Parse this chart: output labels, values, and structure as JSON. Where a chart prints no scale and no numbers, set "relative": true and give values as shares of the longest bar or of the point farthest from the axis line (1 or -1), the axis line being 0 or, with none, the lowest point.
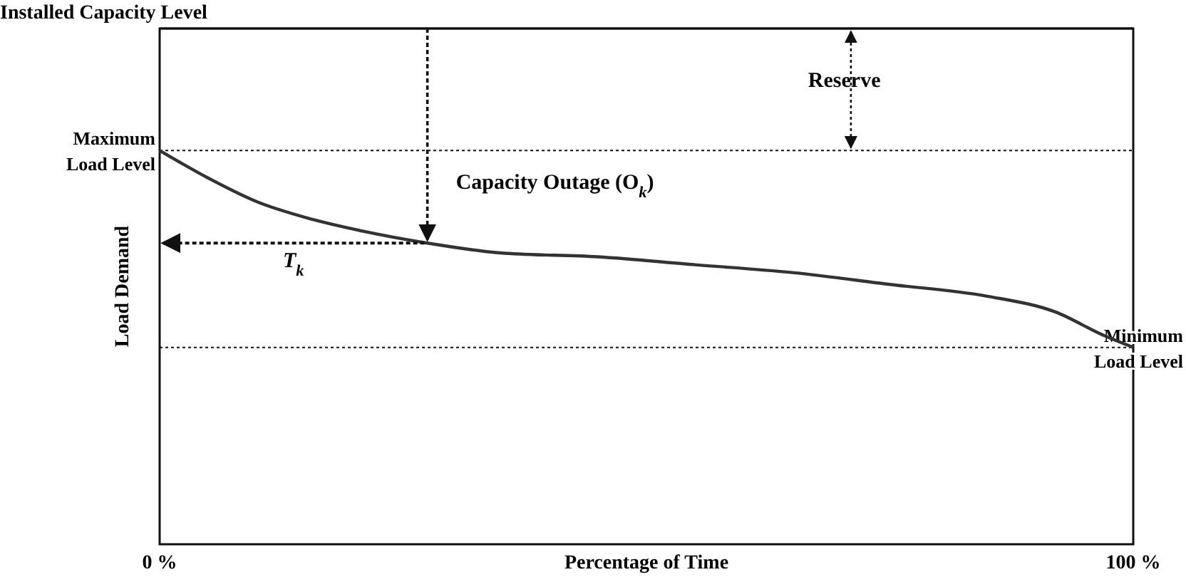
{
  "chart_data": {
    "type": "line",
    "relative": true,
    "xlabel": "Percentage of Time",
    "ylabel": "Load Demand",
    "xlim": [
      0,
      100
    ],
    "xticks": [
      {
        "value": 0,
        "label": "0 %"
      },
      {
        "value": 100,
        "label": "100 %"
      }
    ],
    "x": [
      0,
      5,
      10,
      15,
      20,
      27.5,
      35,
      45,
      55,
      65,
      75,
      85,
      92,
      97,
      100
    ],
    "series": [
      {
        "color": "#333333",
        "values": [
          1.0,
          0.93,
          0.87,
          0.83,
          0.8,
          0.765,
          0.74,
          0.73,
          0.71,
          0.69,
          0.66,
          0.63,
          0.59,
          0.53,
          0.5
        ]
      }
    ],
    "ref_lines": [
      {
        "axis": "y",
        "value": 1.31,
        "label": "Installed Capacity Level"
      },
      {
        "axis": "y",
        "value": 1.0,
        "label": "Maximum Load Level",
        "line_style": "dotted"
      },
      {
        "axis": "y",
        "value": 0.5,
        "label": "Minimum Load Level",
        "line_style": "dotted"
      }
    ],
    "annotations": [
      {
        "text": "Reserve",
        "x": 71,
        "y": 1.0
      },
      {
        "text": "Capacity Outage (O$_{k}$)",
        "x": 27.5,
        "y": 0.765
      },
      "T$_{k}$"
    ],
    "marker": "none",
    "line_style": "solid"
  }
}
